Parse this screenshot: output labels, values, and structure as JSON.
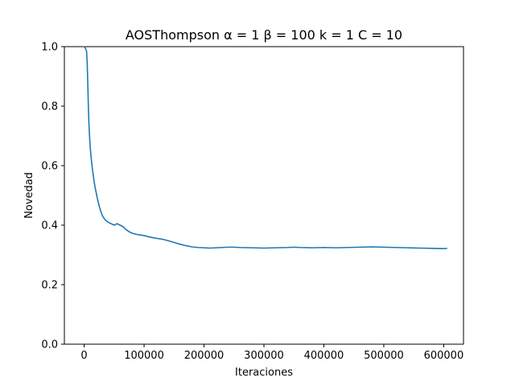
{
  "chart_data": {
    "type": "line",
    "title": "AOSThompson α = 1 β = 100 k = 1 C = 10",
    "xlabel": "Iteraciones",
    "ylabel": "Novedad",
    "xlim": [
      -33000,
      633000
    ],
    "ylim": [
      0.0,
      1.0
    ],
    "xticks": [
      0,
      100000,
      200000,
      300000,
      400000,
      500000,
      600000
    ],
    "xtick_labels": [
      "0",
      "100000",
      "200000",
      "300000",
      "400000",
      "500000",
      "600000"
    ],
    "yticks": [
      0.0,
      0.2,
      0.4,
      0.6,
      0.8,
      1.0
    ],
    "ytick_labels": [
      "0.0",
      "0.2",
      "0.4",
      "0.6",
      "0.8",
      "1.0"
    ],
    "grid": false,
    "colors": {
      "series": "#1f77b4"
    },
    "series": [
      {
        "x": [
          0,
          2000,
          4000,
          5000,
          6000,
          7000,
          8000,
          9000,
          10000,
          12000,
          14000,
          16000,
          18000,
          20000,
          22000,
          25000,
          28000,
          31000,
          35000,
          40000,
          45000,
          50000,
          55000,
          60000,
          65000,
          70000,
          75000,
          80000,
          90000,
          100000,
          110000,
          120000,
          130000,
          140000,
          150000,
          160000,
          170000,
          180000,
          190000,
          200000,
          210000,
          220000,
          230000,
          240000,
          250000,
          260000,
          280000,
          300000,
          320000,
          340000,
          350000,
          360000,
          380000,
          400000,
          420000,
          440000,
          460000,
          480000,
          500000,
          520000,
          540000,
          560000,
          580000,
          600000,
          605000
        ],
        "y": [
          1.0,
          0.995,
          0.985,
          0.95,
          0.88,
          0.8,
          0.74,
          0.7,
          0.665,
          0.62,
          0.585,
          0.555,
          0.53,
          0.51,
          0.49,
          0.465,
          0.445,
          0.43,
          0.418,
          0.41,
          0.405,
          0.4,
          0.405,
          0.4,
          0.395,
          0.385,
          0.378,
          0.373,
          0.368,
          0.365,
          0.36,
          0.356,
          0.353,
          0.348,
          0.342,
          0.336,
          0.331,
          0.327,
          0.325,
          0.324,
          0.323,
          0.324,
          0.325,
          0.326,
          0.326,
          0.325,
          0.324,
          0.323,
          0.324,
          0.325,
          0.326,
          0.325,
          0.324,
          0.325,
          0.324,
          0.325,
          0.326,
          0.327,
          0.326,
          0.325,
          0.324,
          0.323,
          0.322,
          0.321,
          0.322
        ]
      }
    ]
  }
}
